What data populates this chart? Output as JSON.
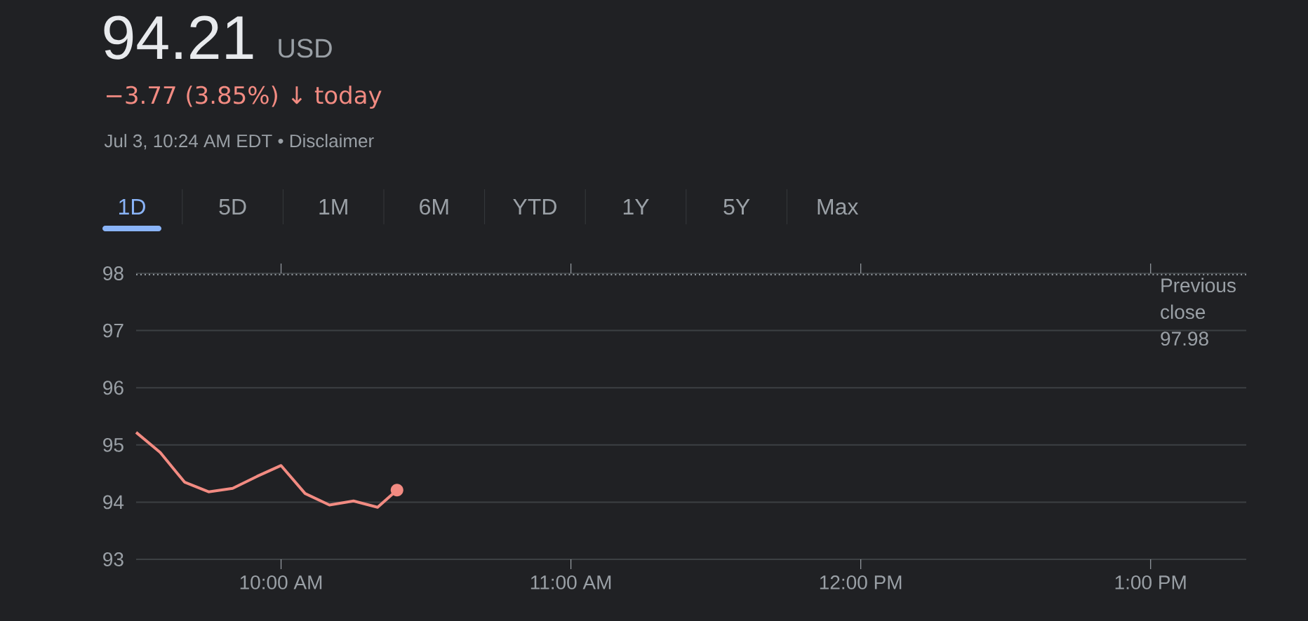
{
  "chart_data": {
    "type": "line",
    "title": "94.21",
    "subtitle": "Jul 3, 10:24 AM EDT • Disclaimer",
    "annotations": [
      "USD",
      "−3.77 (3.85%) ↓ today",
      "1D",
      "5D",
      "1M",
      "6M",
      "YTD",
      "1Y",
      "5Y",
      "Max"
    ],
    "x": [
      9.5,
      9.583,
      9.667,
      9.75,
      9.833,
      9.917,
      10.0,
      10.083,
      10.167,
      10.25,
      10.333,
      10.4
    ],
    "values": [
      95.22,
      94.87,
      94.35,
      94.18,
      94.24,
      94.45,
      94.64,
      94.15,
      93.95,
      94.02,
      93.91,
      94.21
    ],
    "color": "#f28b82",
    "xlim": [
      9.5,
      13.33
    ],
    "xticks": [
      {
        "value": 10,
        "label": "10:00 AM"
      },
      {
        "value": 11,
        "label": "11:00 AM"
      },
      {
        "value": 12,
        "label": "12:00 PM"
      },
      {
        "value": 13,
        "label": "1:00 PM"
      }
    ],
    "ylim": [
      93,
      98
    ],
    "yticks": [
      93,
      94,
      95,
      96,
      97,
      98
    ],
    "ref_lines": [
      {
        "axis": "y",
        "value": 97.98,
        "label": "Previous close 97.98",
        "line_style": "dotted"
      }
    ],
    "grid": "y",
    "marker": "none",
    "line_style": "solid"
  }
}
